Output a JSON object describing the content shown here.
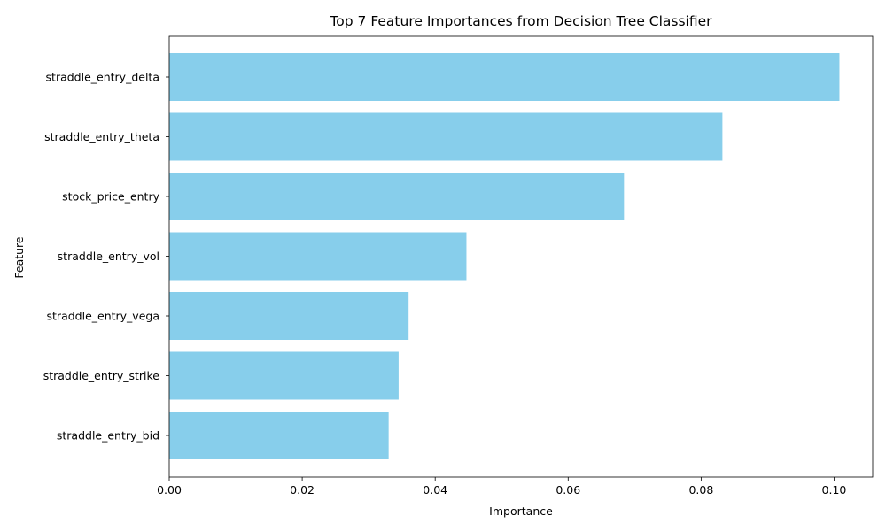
{
  "chart_data": {
    "type": "bar",
    "orientation": "horizontal",
    "title": "Top 7 Feature Importances from Decision Tree Classifier",
    "xlabel": "Importance",
    "ylabel": "Feature",
    "categories": [
      "straddle_entry_delta",
      "straddle_entry_theta",
      "stock_price_entry",
      "straddle_entry_vol",
      "straddle_entry_vega",
      "straddle_entry_strike",
      "straddle_entry_bid"
    ],
    "values": [
      0.1008,
      0.0832,
      0.0684,
      0.0447,
      0.036,
      0.0345,
      0.033
    ],
    "xlim": [
      0,
      0.1058
    ],
    "xticks": [
      0.0,
      0.02,
      0.04,
      0.06,
      0.08,
      0.1
    ],
    "xtick_labels": [
      "0.00",
      "0.02",
      "0.04",
      "0.06",
      "0.08",
      "0.10"
    ],
    "bar_color": "#87ceeb",
    "grid": false,
    "legend": "none"
  }
}
